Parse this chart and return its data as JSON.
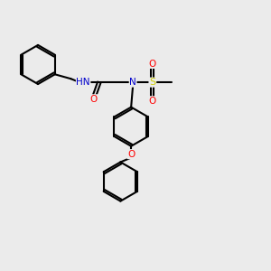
{
  "background_color": "#ebebeb",
  "atom_colors": {
    "C": "#000000",
    "H": "#000000",
    "N": "#0000cc",
    "O": "#ff0000",
    "S": "#cccc00"
  },
  "bond_color": "#000000",
  "bond_width": 1.5,
  "figsize": [
    3.0,
    3.0
  ],
  "dpi": 100
}
